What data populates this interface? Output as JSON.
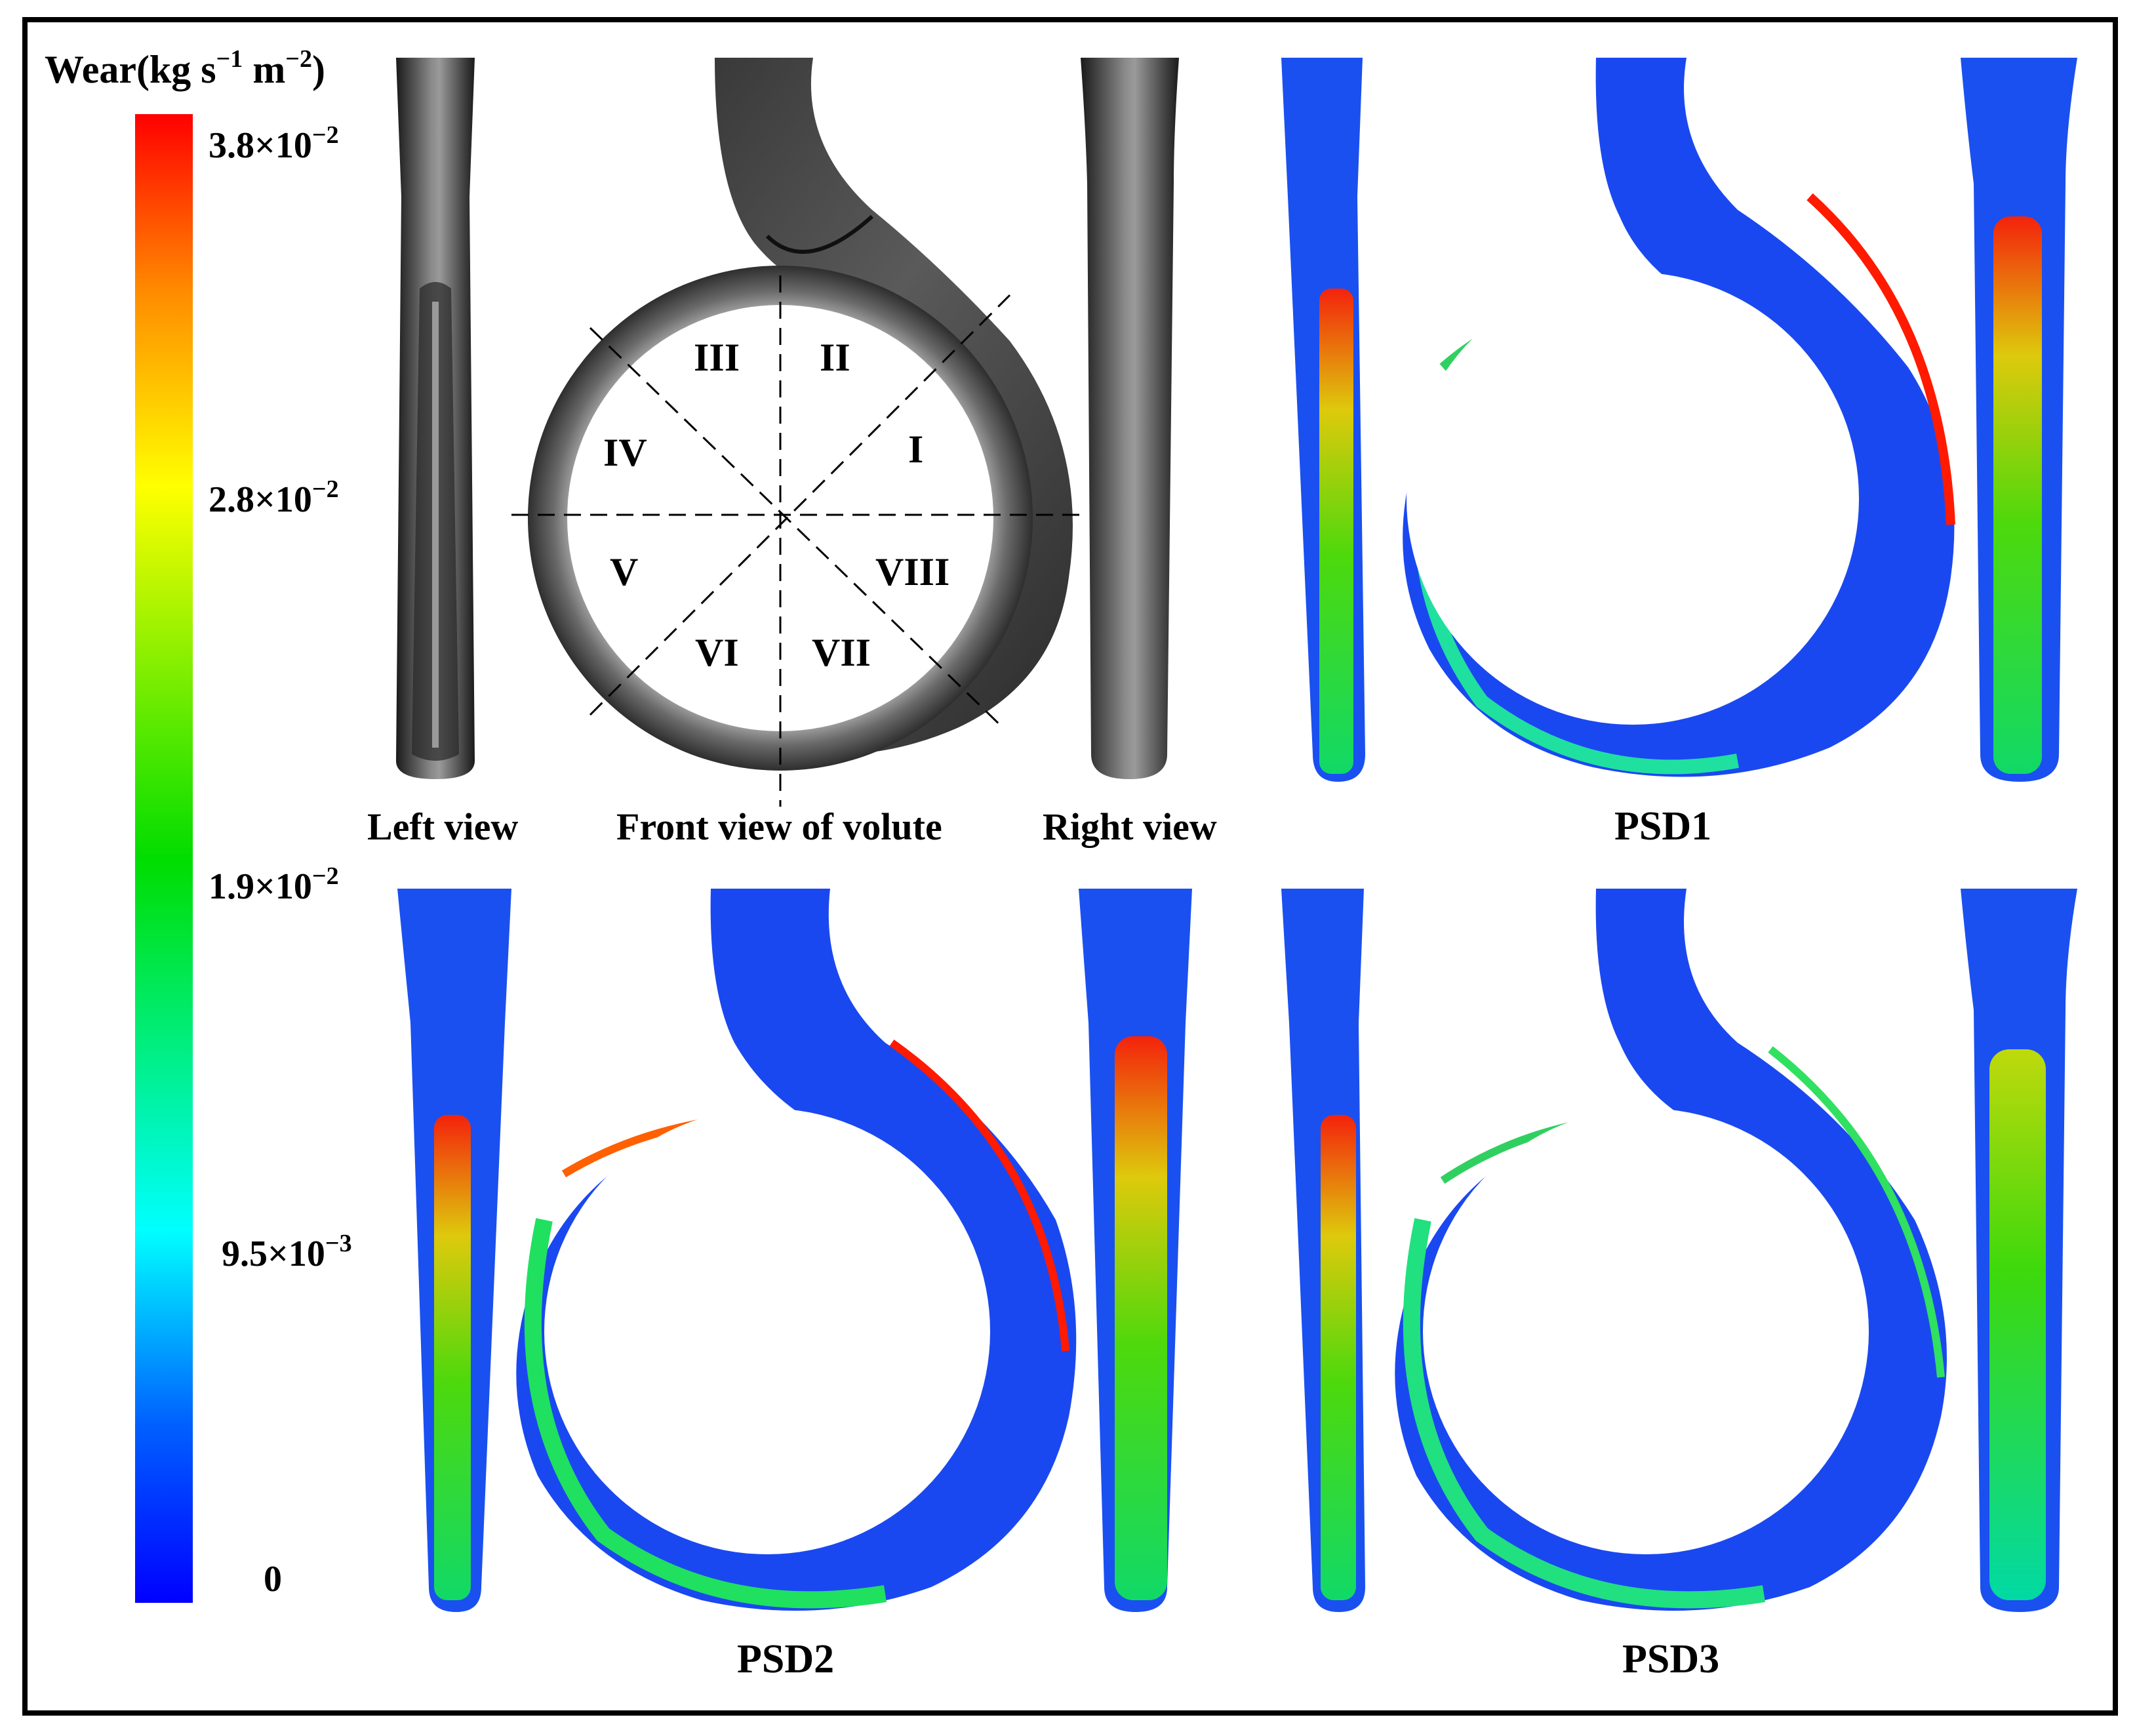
{
  "colorbar": {
    "title_main": "Wear(kg s",
    "title_exp1": "−1",
    "title_mid": " m",
    "title_exp2": "−2",
    "title_end": ")",
    "ticks": [
      {
        "mantissa": "3.8×10",
        "exp": "−2"
      },
      {
        "mantissa": "2.8×10",
        "exp": "−2"
      },
      {
        "mantissa": "1.9×10",
        "exp": "−2"
      },
      {
        "mantissa": "9.5×10",
        "exp": "−3"
      },
      {
        "mantissa": "0",
        "exp": ""
      }
    ],
    "colors": [
      "#ff0000",
      "#ff8c00",
      "#ffff00",
      "#00ee00",
      "#00ffff",
      "#0050ff",
      "#0000ff"
    ]
  },
  "geometry_panel": {
    "left_label": "Left view",
    "front_label": "Front view of volute",
    "right_label": "Right view",
    "sections": [
      "I",
      "II",
      "III",
      "IV",
      "V",
      "VI",
      "VII",
      "VIII"
    ]
  },
  "panels": [
    {
      "label": "PSD1"
    },
    {
      "label": "PSD2"
    },
    {
      "label": "PSD3"
    }
  ]
}
